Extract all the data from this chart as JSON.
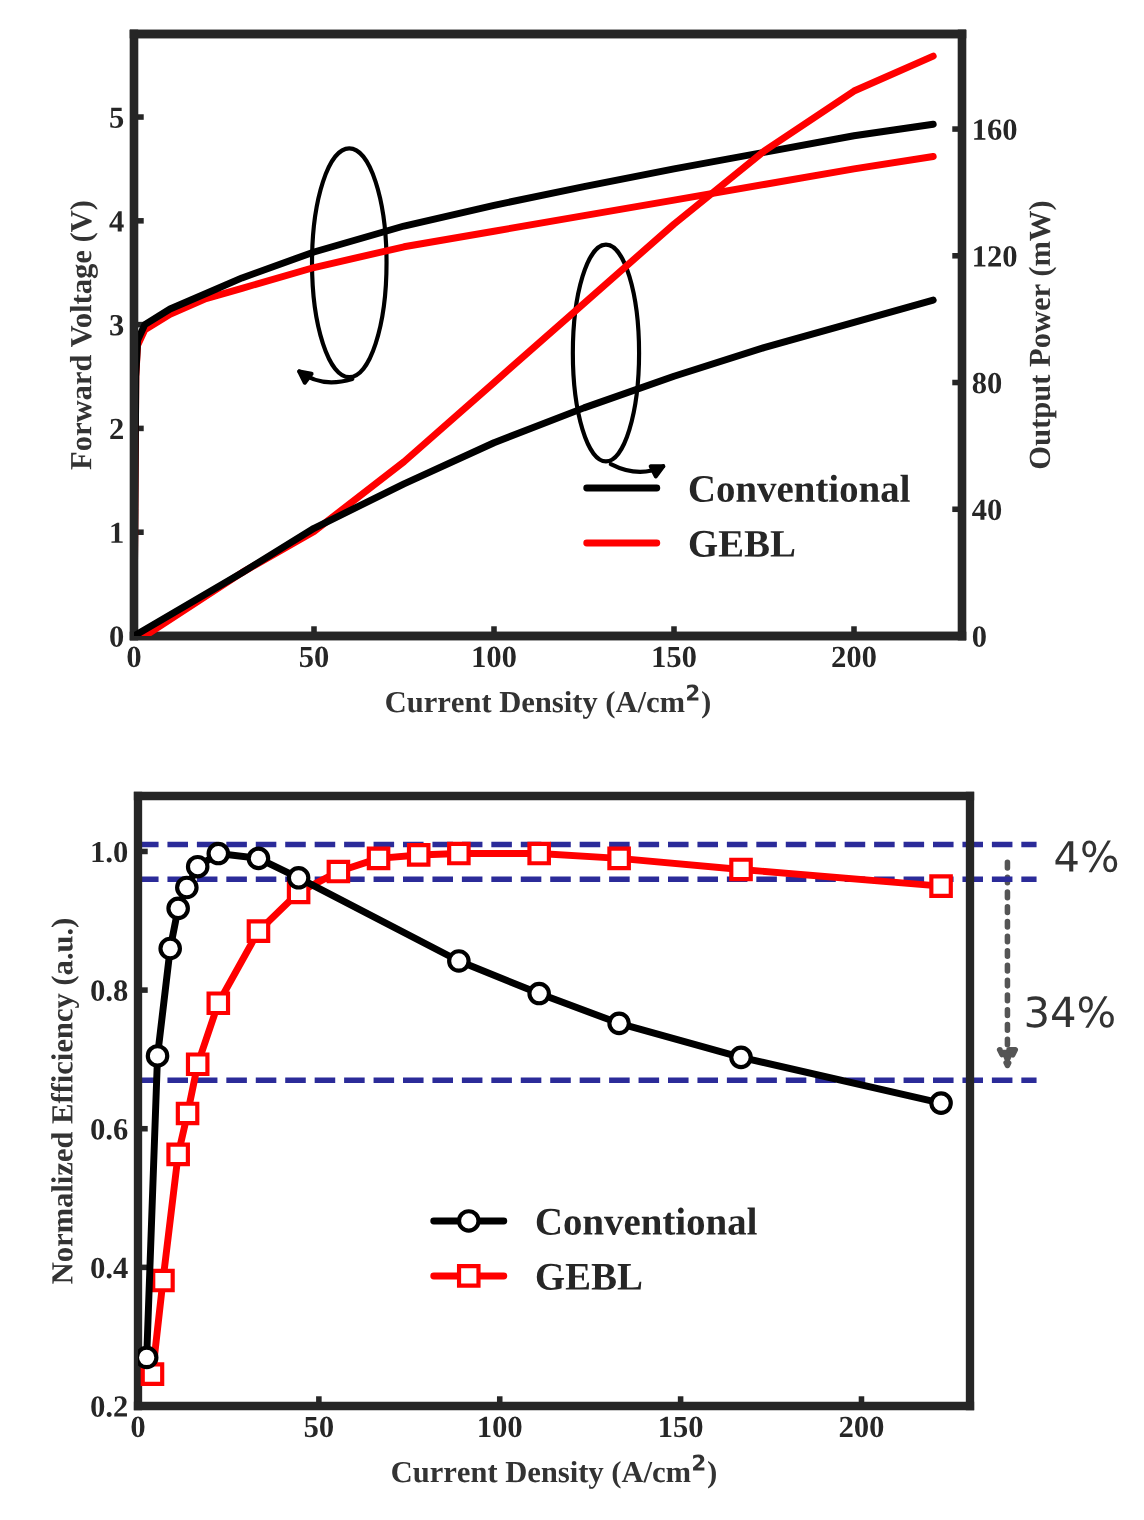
{
  "chart_data": [
    {
      "type": "line",
      "xlabel": "Current Density (A/cm$^{2}$)",
      "ylabel": "Forward Voltage (V)",
      "y2label": "Output Power (mW)",
      "xlim": [
        0,
        230
      ],
      "xticks": [
        0,
        50,
        100,
        150,
        200
      ],
      "ylim": [
        0,
        5.8
      ],
      "yticks": [
        0,
        1,
        2,
        3,
        4,
        5
      ],
      "y2lim": [
        0,
        190
      ],
      "y2ticks": [
        0,
        40,
        80,
        120,
        160
      ],
      "legend": "bottom right",
      "grid": false,
      "marker": "none",
      "line_style": "solid",
      "series": [
        {
          "name": "Conventional",
          "color": "#000000",
          "x": [
            0,
            0.5,
            1,
            3,
            10,
            20,
            30,
            50,
            75,
            100,
            125,
            150,
            175,
            200,
            222
          ],
          "values": [
            0,
            2.5,
            2.85,
            3.0,
            3.15,
            3.3,
            3.45,
            3.7,
            3.95,
            4.15,
            4.33,
            4.5,
            4.66,
            4.82,
            4.93
          ]
        },
        {
          "name": "GEBL",
          "color": "#ff0000",
          "x": [
            0,
            0.5,
            1,
            3,
            10,
            20,
            30,
            50,
            75,
            100,
            125,
            150,
            175,
            200,
            222
          ],
          "values": [
            0,
            2.5,
            2.8,
            2.95,
            3.1,
            3.25,
            3.35,
            3.55,
            3.75,
            3.9,
            4.05,
            4.2,
            4.35,
            4.5,
            4.62
          ]
        },
        {
          "color": "#000000",
          "axis": "y2",
          "x": [
            0,
            30,
            50,
            75,
            100,
            125,
            150,
            175,
            200,
            222
          ],
          "values": [
            0,
            20,
            34,
            48,
            61,
            72,
            82,
            91,
            99,
            106
          ]
        },
        {
          "color": "#ff0000",
          "axis": "y2",
          "x": [
            3,
            30,
            50,
            75,
            100,
            125,
            150,
            175,
            200,
            222
          ],
          "values": [
            0,
            20,
            33,
            55,
            80,
            105,
            130,
            153,
            172,
            183
          ]
        }
      ]
    },
    {
      "type": "line",
      "xlabel": "Current Density (A/cm$^{2}$)",
      "ylabel": "Normalized Efficiency (a.u.)",
      "xlim": [
        0,
        230
      ],
      "xticks": [
        0,
        50,
        100,
        150,
        200
      ],
      "ylim": [
        0.2,
        1.08
      ],
      "yticks": [
        0.2,
        0.4,
        0.6,
        0.8,
        {
          "value": 1.0,
          "label": "1.0"
        }
      ],
      "legend": "bottom",
      "grid": false,
      "line_style": "solid",
      "ref_lines": [
        {
          "axis": "y",
          "value": 1.01,
          "color": "#2b2b99",
          "line_style": "dashed"
        },
        {
          "axis": "y",
          "value": 0.96,
          "color": "#2b2b99",
          "line_style": "dashed"
        },
        {
          "axis": "y",
          "value": 0.67,
          "color": "#2b2b99",
          "line_style": "dashed"
        }
      ],
      "annotations": [
        "4%",
        "34%"
      ],
      "series": [
        {
          "name": "Conventional",
          "color": "#000000",
          "marker": "circle",
          "x": [
            2.4,
            5.4,
            8.9,
            11.1,
            13.5,
            16.5,
            22.2,
            33.3,
            44.4,
            88.7,
            110.9,
            133,
            166.7,
            222
          ],
          "values": [
            0.27,
            0.705,
            0.86,
            0.918,
            0.948,
            0.978,
            0.997,
            0.99,
            0.962,
            0.842,
            0.795,
            0.752,
            0.703,
            0.637
          ]
        },
        {
          "name": "GEBL",
          "color": "#ff0000",
          "marker": "square",
          "x": [
            4,
            6.9,
            11.1,
            13.7,
            16.5,
            22.2,
            33.3,
            44.4,
            55.4,
            66.5,
            77.6,
            88.7,
            110.9,
            133,
            166.7,
            222
          ],
          "values": [
            0.246,
            0.381,
            0.563,
            0.622,
            0.693,
            0.781,
            0.885,
            0.941,
            0.971,
            0.99,
            0.995,
            0.997,
            0.997,
            0.99,
            0.974,
            0.95
          ]
        }
      ]
    }
  ]
}
